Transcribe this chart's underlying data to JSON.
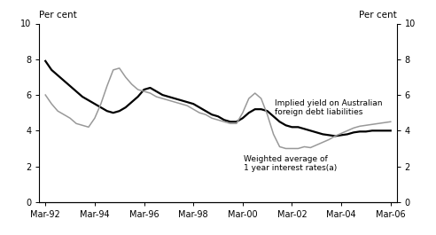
{
  "ylabel_left": "Per cent",
  "ylabel_right": "Per cent",
  "ylim": [
    0,
    10
  ],
  "yticks": [
    0,
    2,
    4,
    6,
    8,
    10
  ],
  "implied_yield_color": "#000000",
  "weighted_avg_color": "#999999",
  "implied_yield_lw": 1.6,
  "weighted_avg_lw": 1.1,
  "annotation1_text": "Implied yield on Australian\nforeign debt liabilities",
  "annotation2_text": "Weighted average of\n1 year interest rates(a)",
  "x_labels": [
    "Mar-92",
    "Mar-94",
    "Mar-96",
    "Mar-98",
    "Mar-00",
    "Mar-02",
    "Mar-04",
    "Mar-06"
  ],
  "x_tick_positions": [
    1992.25,
    1994.25,
    1996.25,
    1998.25,
    2000.25,
    2002.25,
    2004.25,
    2006.25
  ],
  "xlim": [
    1992.0,
    2006.5
  ],
  "implied_yield_x": [
    1992.25,
    1992.5,
    1992.75,
    1993.0,
    1993.25,
    1993.5,
    1993.75,
    1994.0,
    1994.25,
    1994.5,
    1994.75,
    1995.0,
    1995.25,
    1995.5,
    1995.75,
    1996.0,
    1996.25,
    1996.5,
    1996.75,
    1997.0,
    1997.25,
    1997.5,
    1997.75,
    1998.0,
    1998.25,
    1998.5,
    1998.75,
    1999.0,
    1999.25,
    1999.5,
    1999.75,
    2000.0,
    2000.25,
    2000.5,
    2000.75,
    2001.0,
    2001.25,
    2001.5,
    2001.75,
    2002.0,
    2002.25,
    2002.5,
    2002.75,
    2003.0,
    2003.25,
    2003.5,
    2003.75,
    2004.0,
    2004.25,
    2004.5,
    2004.75,
    2005.0,
    2005.25,
    2005.5,
    2005.75,
    2006.0,
    2006.25
  ],
  "implied_yield_y": [
    7.9,
    7.4,
    7.1,
    6.8,
    6.5,
    6.2,
    5.9,
    5.7,
    5.5,
    5.3,
    5.1,
    5.0,
    5.1,
    5.3,
    5.6,
    5.9,
    6.3,
    6.4,
    6.2,
    6.0,
    5.9,
    5.8,
    5.7,
    5.6,
    5.5,
    5.3,
    5.1,
    4.9,
    4.8,
    4.6,
    4.5,
    4.5,
    4.7,
    5.0,
    5.2,
    5.2,
    5.1,
    4.8,
    4.5,
    4.3,
    4.2,
    4.2,
    4.1,
    4.0,
    3.9,
    3.8,
    3.75,
    3.7,
    3.75,
    3.8,
    3.9,
    3.95,
    3.95,
    4.0,
    4.0,
    4.0,
    4.0
  ],
  "weighted_avg_x": [
    1992.25,
    1992.5,
    1992.75,
    1993.0,
    1993.25,
    1993.5,
    1993.75,
    1994.0,
    1994.25,
    1994.5,
    1994.75,
    1995.0,
    1995.25,
    1995.5,
    1995.75,
    1996.0,
    1996.25,
    1996.5,
    1996.75,
    1997.0,
    1997.25,
    1997.5,
    1997.75,
    1998.0,
    1998.25,
    1998.5,
    1998.75,
    1999.0,
    1999.25,
    1999.5,
    1999.75,
    2000.0,
    2000.25,
    2000.5,
    2000.75,
    2001.0,
    2001.25,
    2001.5,
    2001.75,
    2002.0,
    2002.25,
    2002.5,
    2002.75,
    2003.0,
    2003.25,
    2003.5,
    2003.75,
    2004.0,
    2004.25,
    2004.5,
    2004.75,
    2005.0,
    2005.25,
    2005.5,
    2005.75,
    2006.0,
    2006.25
  ],
  "weighted_avg_y": [
    6.0,
    5.5,
    5.1,
    4.9,
    4.7,
    4.4,
    4.3,
    4.2,
    4.7,
    5.5,
    6.5,
    7.4,
    7.5,
    7.0,
    6.6,
    6.3,
    6.2,
    6.1,
    5.9,
    5.8,
    5.7,
    5.6,
    5.5,
    5.4,
    5.2,
    5.0,
    4.9,
    4.7,
    4.6,
    4.5,
    4.4,
    4.4,
    5.0,
    5.8,
    6.1,
    5.8,
    4.9,
    3.8,
    3.1,
    3.0,
    3.0,
    3.0,
    3.1,
    3.05,
    3.2,
    3.35,
    3.5,
    3.7,
    3.85,
    4.0,
    4.15,
    4.25,
    4.3,
    4.35,
    4.4,
    4.45,
    4.5
  ]
}
